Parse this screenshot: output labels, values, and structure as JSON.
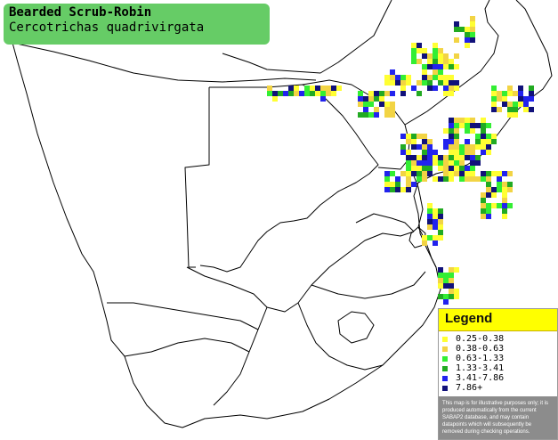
{
  "title": {
    "common_name": "Bearded Scrub-Robin",
    "scientific_name": "Cercotrichas quadrivirgata"
  },
  "legend": {
    "heading": "Legend",
    "items": [
      {
        "label": "0.25-0.38",
        "color": "#ffff33"
      },
      {
        "label": "0.38-0.63",
        "color": "#f2d444"
      },
      {
        "label": "0.63-1.33",
        "color": "#33ee33"
      },
      {
        "label": "1.33-3.41",
        "color": "#22aa22"
      },
      {
        "label": "3.41-7.86",
        "color": "#2222ee"
      },
      {
        "label": "7.86+",
        "color": "#11117a"
      }
    ],
    "note": "This map is for illustrative purposes only; it is produced automatically from the current SABAP2 database, and may contain datapoints which will subsequently be removed during checking operations."
  },
  "colors": {
    "title_box": "#66cc66",
    "legend_header": "#ffff00",
    "land_outline": "#000000",
    "background": "#ffffff"
  }
}
